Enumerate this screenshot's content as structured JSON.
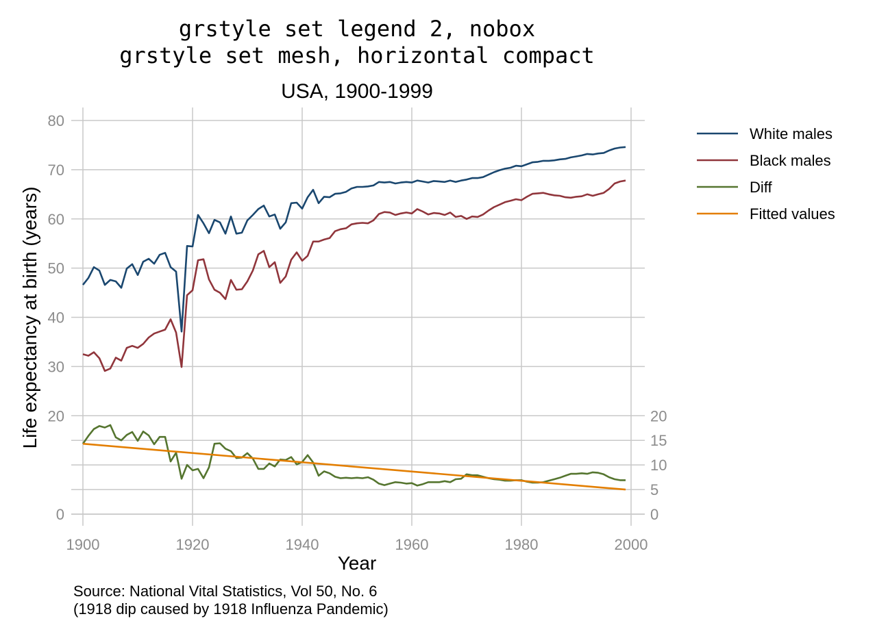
{
  "chart_data": {
    "type": "line",
    "title_lines": [
      "grstyle set legend 2, nobox",
      "grstyle set mesh, horizontal compact"
    ],
    "subtitle": "USA, 1900-1999",
    "xlabel": "Year",
    "ylabel": "Life expectancy at birth (years)",
    "xlim": [
      1900,
      2000
    ],
    "ylim": [
      0,
      80
    ],
    "x_ticks": [
      "1900",
      "1920",
      "1940",
      "1960",
      "1980",
      "2000"
    ],
    "y_ticks_left": [
      "0",
      "20",
      "30",
      "40",
      "50",
      "60",
      "70",
      "80"
    ],
    "y_ticks_right": [
      "0",
      "5",
      "10",
      "15",
      "20"
    ],
    "right_axis_scale": [
      0,
      20
    ],
    "grid": true,
    "legend_position": "right",
    "note_lines": [
      "Source: National Vital Statistics, Vol 50, No. 6",
      "(1918 dip caused by 1918 Influenza Pandemic)"
    ],
    "x": [
      1900,
      1901,
      1902,
      1903,
      1904,
      1905,
      1906,
      1907,
      1908,
      1909,
      1910,
      1911,
      1912,
      1913,
      1914,
      1915,
      1916,
      1917,
      1918,
      1919,
      1920,
      1921,
      1922,
      1923,
      1924,
      1925,
      1926,
      1927,
      1928,
      1929,
      1930,
      1931,
      1932,
      1933,
      1934,
      1935,
      1936,
      1937,
      1938,
      1939,
      1940,
      1941,
      1942,
      1943,
      1944,
      1945,
      1946,
      1947,
      1948,
      1949,
      1950,
      1951,
      1952,
      1953,
      1954,
      1955,
      1956,
      1957,
      1958,
      1959,
      1960,
      1961,
      1962,
      1963,
      1964,
      1965,
      1966,
      1967,
      1968,
      1969,
      1970,
      1971,
      1972,
      1973,
      1974,
      1975,
      1976,
      1977,
      1978,
      1979,
      1980,
      1981,
      1982,
      1983,
      1984,
      1985,
      1986,
      1987,
      1988,
      1989,
      1990,
      1991,
      1992,
      1993,
      1994,
      1995,
      1996,
      1997,
      1998,
      1999
    ],
    "series": [
      {
        "name": "White males",
        "color": "#1a476f",
        "axis": "left",
        "values": [
          46.6,
          48.0,
          50.2,
          49.5,
          46.6,
          47.6,
          47.3,
          46.0,
          49.9,
          50.8,
          48.6,
          51.3,
          51.9,
          50.9,
          52.7,
          53.1,
          50.2,
          49.3,
          37.1,
          54.5,
          54.4,
          60.8,
          59.1,
          57.1,
          59.8,
          59.3,
          57.0,
          60.5,
          57.0,
          57.2,
          59.7,
          60.8,
          62.0,
          62.7,
          60.5,
          60.9,
          58.0,
          59.3,
          63.2,
          63.3,
          62.1,
          64.4,
          65.9,
          63.2,
          64.5,
          64.4,
          65.1,
          65.2,
          65.5,
          66.2,
          66.5,
          66.5,
          66.6,
          66.8,
          67.5,
          67.4,
          67.5,
          67.2,
          67.4,
          67.5,
          67.4,
          67.8,
          67.6,
          67.4,
          67.7,
          67.6,
          67.5,
          67.8,
          67.5,
          67.8,
          68.0,
          68.3,
          68.3,
          68.5,
          69.0,
          69.5,
          69.9,
          70.2,
          70.4,
          70.8,
          70.7,
          71.1,
          71.5,
          71.6,
          71.8,
          71.8,
          71.9,
          72.1,
          72.2,
          72.5,
          72.7,
          72.9,
          73.2,
          73.1,
          73.3,
          73.4,
          73.9,
          74.3,
          74.5,
          74.6
        ]
      },
      {
        "name": "Black males",
        "color": "#90353b",
        "axis": "left",
        "values": [
          32.5,
          32.2,
          32.9,
          31.7,
          29.1,
          29.6,
          31.8,
          31.2,
          33.8,
          34.2,
          33.8,
          34.6,
          35.9,
          36.7,
          37.1,
          37.5,
          39.6,
          36.9,
          29.9,
          44.5,
          45.5,
          51.6,
          51.8,
          47.7,
          45.6,
          45.0,
          43.7,
          47.6,
          45.6,
          45.7,
          47.3,
          49.5,
          52.8,
          53.5,
          50.2,
          51.2,
          47.0,
          48.3,
          51.7,
          53.2,
          51.5,
          52.5,
          55.4,
          55.4,
          55.8,
          56.1,
          57.5,
          57.9,
          58.1,
          58.9,
          59.1,
          59.2,
          59.1,
          59.7,
          61.0,
          61.4,
          61.3,
          60.8,
          61.1,
          61.3,
          61.1,
          62.0,
          61.5,
          60.9,
          61.2,
          61.1,
          60.8,
          61.3,
          60.4,
          60.6,
          60.0,
          60.5,
          60.4,
          60.9,
          61.7,
          62.4,
          62.9,
          63.4,
          63.7,
          64.0,
          63.8,
          64.5,
          65.1,
          65.2,
          65.3,
          65.0,
          64.8,
          64.7,
          64.4,
          64.3,
          64.5,
          64.6,
          65.0,
          64.7,
          65.0,
          65.3,
          66.1,
          67.2,
          67.6,
          67.8
        ]
      },
      {
        "name": "Diff",
        "color": "#55752f",
        "axis": "right",
        "values": [
          14.3,
          15.9,
          17.3,
          17.9,
          17.6,
          18.1,
          15.6,
          15.0,
          16.1,
          16.7,
          14.9,
          16.8,
          16.0,
          14.2,
          15.7,
          15.7,
          10.7,
          12.5,
          7.2,
          10.0,
          8.9,
          9.2,
          7.3,
          9.5,
          14.3,
          14.4,
          13.3,
          12.8,
          11.4,
          11.5,
          12.4,
          11.3,
          9.2,
          9.2,
          10.3,
          9.7,
          11.1,
          11.0,
          11.6,
          10.1,
          10.6,
          12.0,
          10.5,
          7.8,
          8.7,
          8.3,
          7.6,
          7.3,
          7.4,
          7.3,
          7.4,
          7.3,
          7.5,
          7.0,
          6.2,
          5.9,
          6.2,
          6.5,
          6.4,
          6.2,
          6.3,
          5.8,
          6.1,
          6.5,
          6.5,
          6.5,
          6.7,
          6.5,
          7.1,
          7.2,
          8.1,
          7.9,
          7.9,
          7.6,
          7.3,
          7.1,
          7.0,
          6.8,
          6.8,
          6.9,
          6.9,
          6.6,
          6.4,
          6.4,
          6.5,
          6.8,
          7.1,
          7.4,
          7.8,
          8.2,
          8.2,
          8.3,
          8.2,
          8.5,
          8.4,
          8.1,
          7.5,
          7.1,
          6.9,
          6.9
        ]
      },
      {
        "name": "Fitted values",
        "color": "#e37e00",
        "axis": "right",
        "type": "linear-fit",
        "start": [
          1900,
          14.3
        ],
        "end": [
          1999,
          5.0
        ]
      }
    ]
  }
}
